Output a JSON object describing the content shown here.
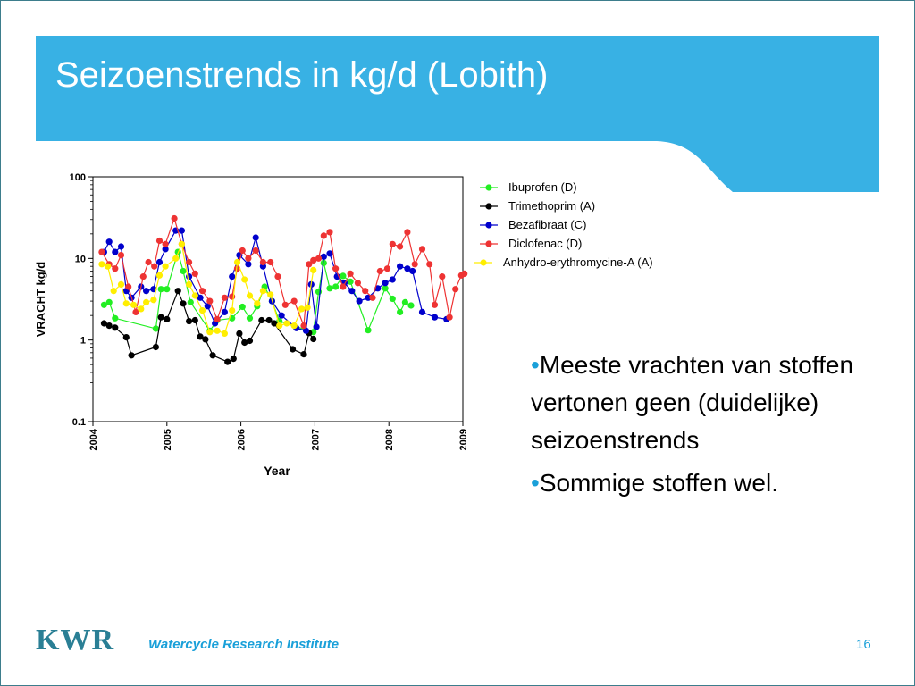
{
  "slide": {
    "title": "Seizoenstrends in kg/d (Lobith)",
    "bullets": [
      {
        "marker": "•",
        "text": "Meeste vrachten van stoffen vertonen geen (duidelijke) seizoenstrends"
      },
      {
        "marker": "•",
        "text": "Sommige stoffen wel."
      }
    ],
    "footer": {
      "logo_text": "KWR",
      "organization": "Watercycle Research Institute",
      "page_number": "16"
    },
    "colors": {
      "banner": "#38b1e4",
      "frame": "#3d7d8c",
      "accent": "#1aa0d9",
      "logo": "#2a7f95"
    }
  },
  "chart_data": {
    "type": "line",
    "scale": "log",
    "ylabel": "VRACHT kg/d",
    "xlabel": "Year",
    "ylim": [
      0.1,
      100
    ],
    "xlim": [
      2004,
      2009
    ],
    "x_ticks": [
      "2004",
      "2005",
      "2006",
      "2007",
      "2008",
      "2009"
    ],
    "y_ticks": [
      "0.1",
      "1",
      "10",
      "100"
    ],
    "legend_position": "top-right",
    "series": [
      {
        "name": "Ibuprofen (D)",
        "color": "#22ee22",
        "points": [
          [
            2004.15,
            2.7
          ],
          [
            2004.22,
            2.9
          ],
          [
            2004.3,
            1.85
          ],
          [
            2004.85,
            1.38
          ],
          [
            2004.92,
            4.2
          ],
          [
            2005.0,
            4.2
          ],
          [
            2005.15,
            12.0
          ],
          [
            2005.22,
            7.0
          ],
          [
            2005.32,
            2.9
          ],
          [
            2005.58,
            1.3
          ],
          [
            2005.68,
            1.75
          ],
          [
            2005.88,
            1.85
          ],
          [
            2006.02,
            2.55
          ],
          [
            2006.12,
            1.85
          ],
          [
            2006.22,
            2.6
          ],
          [
            2006.32,
            4.5
          ],
          [
            2006.42,
            3.0
          ],
          [
            2006.52,
            1.7
          ],
          [
            2006.98,
            1.25
          ],
          [
            2007.05,
            3.9
          ],
          [
            2007.12,
            8.8
          ],
          [
            2007.2,
            4.3
          ],
          [
            2007.28,
            4.5
          ],
          [
            2007.38,
            6.1
          ],
          [
            2007.48,
            5.2
          ],
          [
            2007.72,
            1.32
          ],
          [
            2007.95,
            4.3
          ],
          [
            2008.05,
            3.2
          ],
          [
            2008.15,
            2.2
          ],
          [
            2008.22,
            2.9
          ],
          [
            2008.3,
            2.65
          ]
        ]
      },
      {
        "name": "Trimethoprim (A)",
        "color": "#000000",
        "points": [
          [
            2004.15,
            1.6
          ],
          [
            2004.22,
            1.5
          ],
          [
            2004.3,
            1.42
          ],
          [
            2004.45,
            1.08
          ],
          [
            2004.52,
            0.65
          ],
          [
            2004.85,
            0.82
          ],
          [
            2004.92,
            1.9
          ],
          [
            2005.0,
            1.8
          ],
          [
            2005.15,
            4.0
          ],
          [
            2005.22,
            2.8
          ],
          [
            2005.3,
            1.7
          ],
          [
            2005.38,
            1.75
          ],
          [
            2005.45,
            1.1
          ],
          [
            2005.52,
            1.02
          ],
          [
            2005.62,
            0.65
          ],
          [
            2005.82,
            0.54
          ],
          [
            2005.9,
            0.59
          ],
          [
            2005.98,
            1.2
          ],
          [
            2006.05,
            0.93
          ],
          [
            2006.12,
            0.98
          ],
          [
            2006.28,
            1.75
          ],
          [
            2006.38,
            1.75
          ],
          [
            2006.45,
            1.6
          ],
          [
            2006.7,
            0.77
          ],
          [
            2006.85,
            0.67
          ],
          [
            2006.92,
            1.22
          ],
          [
            2006.98,
            1.03
          ]
        ]
      },
      {
        "name": "Bezafibraat (C)",
        "color": "#0000cc",
        "points": [
          [
            2004.15,
            12.0
          ],
          [
            2004.22,
            16.0
          ],
          [
            2004.3,
            12.0
          ],
          [
            2004.38,
            14.0
          ],
          [
            2004.45,
            4.0
          ],
          [
            2004.52,
            3.3
          ],
          [
            2004.65,
            4.5
          ],
          [
            2004.72,
            4.0
          ],
          [
            2004.82,
            4.2
          ],
          [
            2004.9,
            9.0
          ],
          [
            2004.98,
            13.0
          ],
          [
            2005.12,
            22.0
          ],
          [
            2005.2,
            22.0
          ],
          [
            2005.3,
            6.0
          ],
          [
            2005.45,
            3.3
          ],
          [
            2005.55,
            2.6
          ],
          [
            2005.65,
            1.6
          ],
          [
            2005.78,
            2.2
          ],
          [
            2005.88,
            6.0
          ],
          [
            2005.98,
            11.0
          ],
          [
            2006.1,
            8.5
          ],
          [
            2006.2,
            18.0
          ],
          [
            2006.3,
            8.0
          ],
          [
            2006.42,
            3.0
          ],
          [
            2006.55,
            2.0
          ],
          [
            2006.75,
            1.4
          ],
          [
            2006.88,
            1.3
          ],
          [
            2006.95,
            4.8
          ],
          [
            2007.02,
            1.45
          ],
          [
            2007.12,
            10.5
          ],
          [
            2007.2,
            11.5
          ],
          [
            2007.3,
            6.0
          ],
          [
            2007.4,
            5.0
          ],
          [
            2007.5,
            4.0
          ],
          [
            2007.6,
            3.0
          ],
          [
            2007.72,
            3.3
          ],
          [
            2007.85,
            4.3
          ],
          [
            2007.95,
            5.0
          ],
          [
            2008.05,
            5.5
          ],
          [
            2008.15,
            8.0
          ],
          [
            2008.25,
            7.5
          ],
          [
            2008.32,
            7.0
          ],
          [
            2008.45,
            2.2
          ],
          [
            2008.62,
            1.9
          ],
          [
            2008.78,
            1.8
          ]
        ]
      },
      {
        "name": "Diclofenac (D)",
        "color": "#ee3333",
        "points": [
          [
            2004.12,
            12.0
          ],
          [
            2004.22,
            8.5
          ],
          [
            2004.3,
            7.5
          ],
          [
            2004.38,
            11.0
          ],
          [
            2004.48,
            4.5
          ],
          [
            2004.58,
            2.2
          ],
          [
            2004.68,
            6.0
          ],
          [
            2004.75,
            9.0
          ],
          [
            2004.83,
            8.0
          ],
          [
            2004.9,
            16.5
          ],
          [
            2004.98,
            15.0
          ],
          [
            2005.1,
            31.0
          ],
          [
            2005.2,
            15.0
          ],
          [
            2005.3,
            9.0
          ],
          [
            2005.38,
            6.5
          ],
          [
            2005.48,
            4.0
          ],
          [
            2005.58,
            3.0
          ],
          [
            2005.68,
            1.8
          ],
          [
            2005.78,
            3.3
          ],
          [
            2005.88,
            3.4
          ],
          [
            2005.95,
            7.5
          ],
          [
            2006.02,
            12.5
          ],
          [
            2006.1,
            10.0
          ],
          [
            2006.2,
            12.5
          ],
          [
            2006.3,
            9.0
          ],
          [
            2006.4,
            9.0
          ],
          [
            2006.5,
            6.0
          ],
          [
            2006.6,
            2.7
          ],
          [
            2006.72,
            3.0
          ],
          [
            2006.85,
            1.5
          ],
          [
            2006.92,
            8.5
          ],
          [
            2006.98,
            9.5
          ],
          [
            2007.05,
            10.0
          ],
          [
            2007.12,
            19.0
          ],
          [
            2007.2,
            21.0
          ],
          [
            2007.28,
            7.5
          ],
          [
            2007.38,
            4.5
          ],
          [
            2007.48,
            6.5
          ],
          [
            2007.58,
            5.0
          ],
          [
            2007.68,
            4.0
          ],
          [
            2007.78,
            3.3
          ],
          [
            2007.88,
            7.0
          ],
          [
            2007.98,
            7.5
          ],
          [
            2008.05,
            15.0
          ],
          [
            2008.15,
            14.0
          ],
          [
            2008.25,
            21.0
          ],
          [
            2008.35,
            8.5
          ],
          [
            2008.45,
            13.0
          ],
          [
            2008.55,
            8.5
          ],
          [
            2008.62,
            2.7
          ],
          [
            2008.72,
            6.0
          ],
          [
            2008.82,
            1.9
          ],
          [
            2008.9,
            4.2
          ],
          [
            2008.98,
            6.2
          ],
          [
            2009.02,
            6.5
          ]
        ]
      },
      {
        "name": "Anhydro-erythromycine-A (A)",
        "color": "#ffee00",
        "points": [
          [
            2004.12,
            8.5
          ],
          [
            2004.2,
            8.0
          ],
          [
            2004.28,
            4.0
          ],
          [
            2004.38,
            4.8
          ],
          [
            2004.45,
            2.8
          ],
          [
            2004.55,
            2.7
          ],
          [
            2004.65,
            2.4
          ],
          [
            2004.72,
            2.9
          ],
          [
            2004.82,
            3.1
          ],
          [
            2004.9,
            6.2
          ],
          [
            2004.98,
            8.0
          ],
          [
            2005.12,
            10.0
          ],
          [
            2005.2,
            15.0
          ],
          [
            2005.3,
            4.8
          ],
          [
            2005.38,
            3.5
          ],
          [
            2005.48,
            2.3
          ],
          [
            2005.58,
            1.25
          ],
          [
            2005.68,
            1.3
          ],
          [
            2005.78,
            1.2
          ],
          [
            2005.88,
            2.3
          ],
          [
            2005.95,
            9.0
          ],
          [
            2006.05,
            5.5
          ],
          [
            2006.12,
            3.5
          ],
          [
            2006.22,
            2.8
          ],
          [
            2006.3,
            4.0
          ],
          [
            2006.4,
            3.6
          ],
          [
            2006.52,
            1.5
          ],
          [
            2006.62,
            1.6
          ],
          [
            2006.72,
            1.5
          ],
          [
            2006.82,
            2.4
          ],
          [
            2006.9,
            2.5
          ],
          [
            2006.98,
            7.2
          ]
        ]
      }
    ]
  }
}
